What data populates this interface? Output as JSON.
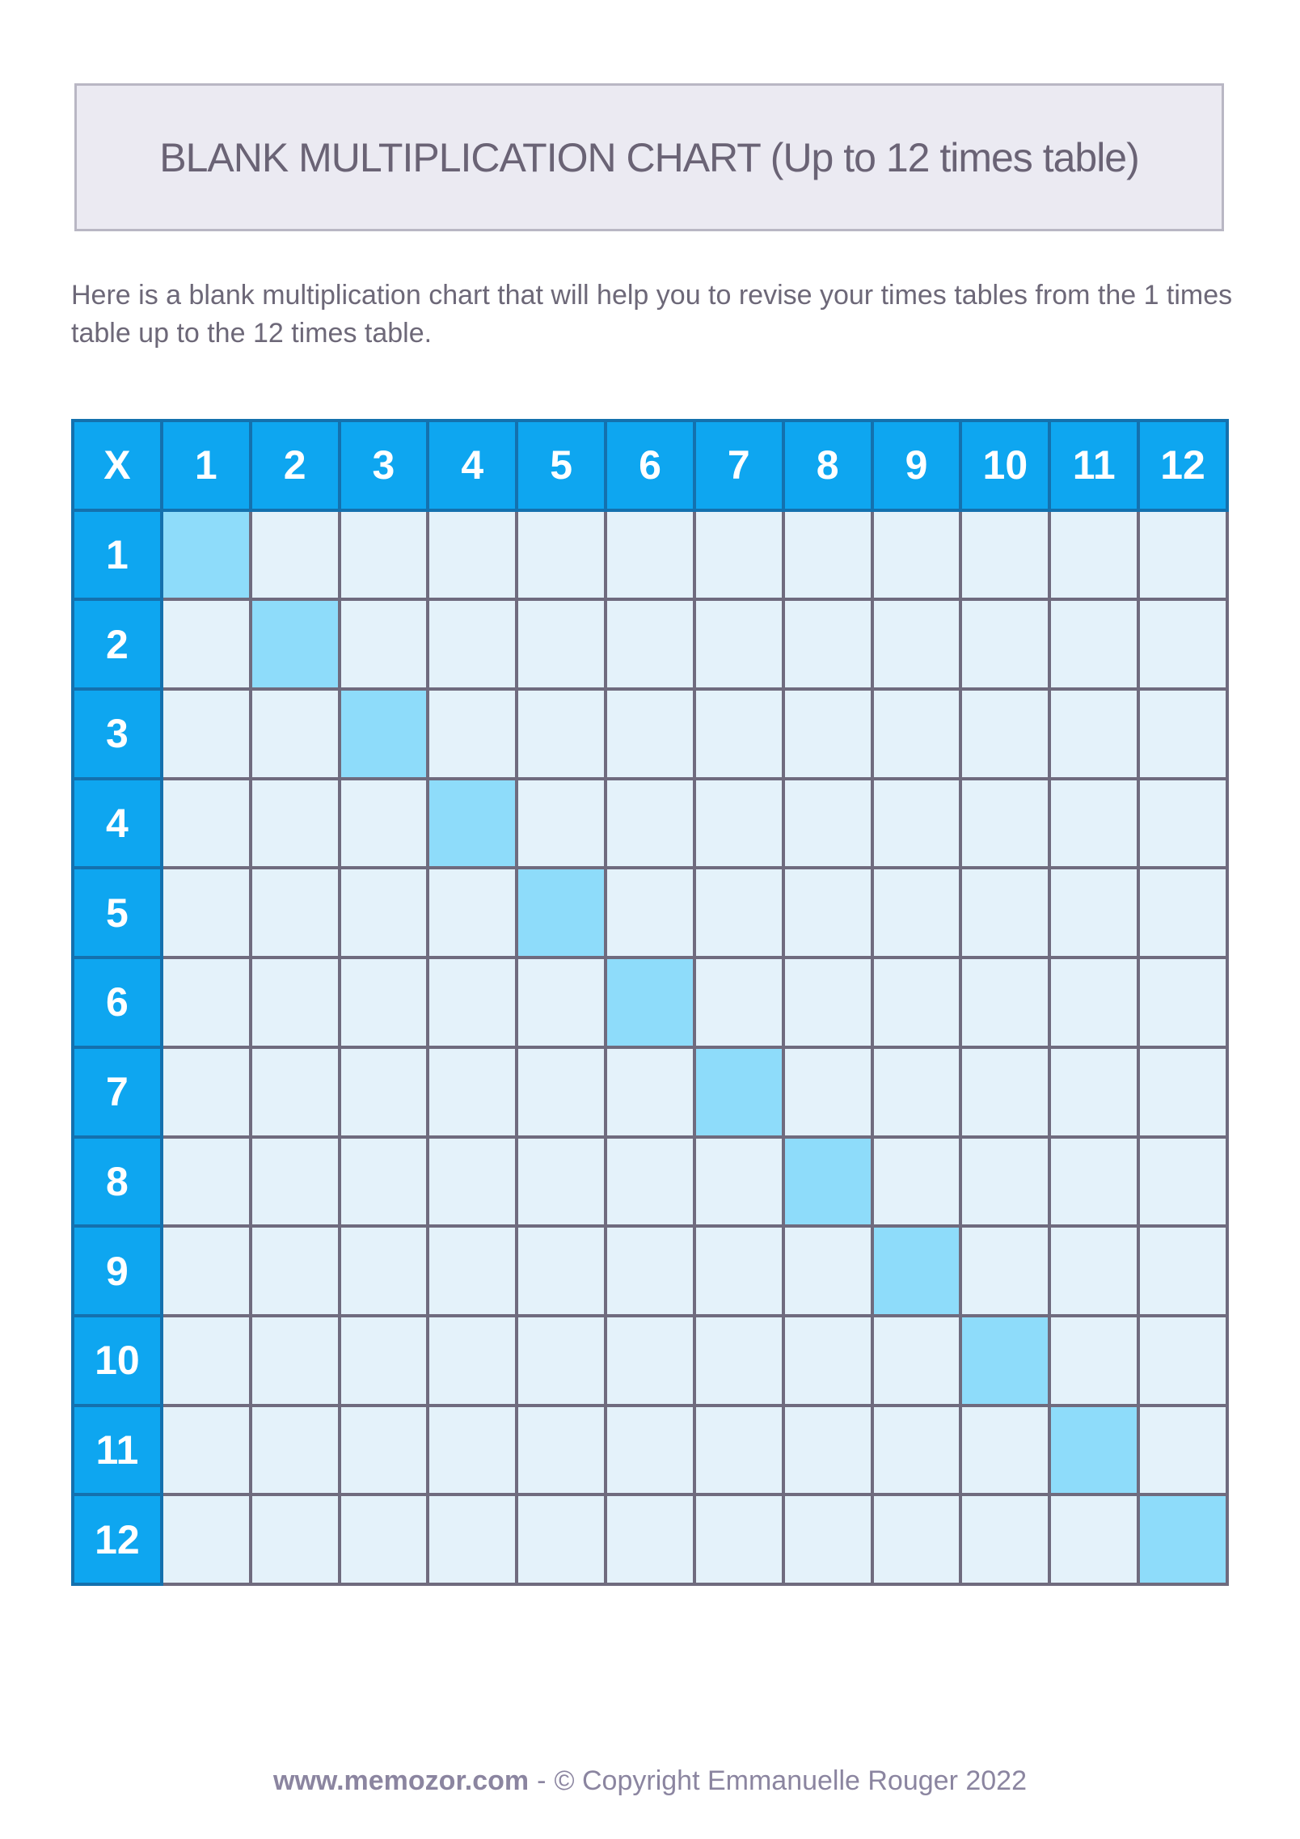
{
  "page": {
    "background": "#ffffff"
  },
  "title_box": {
    "text": "BLANK MULTIPLICATION CHART (Up to 12 times table)",
    "bg": "#ebeaf2",
    "border": "#b9b7c4",
    "text_color": "#6a6375"
  },
  "intro": {
    "text": "Here is a blank multiplication chart that will help you to revise your times tables from the 1 times table up to the 12 times table."
  },
  "table": {
    "corner_label": "X",
    "column_headers": [
      "1",
      "2",
      "3",
      "4",
      "5",
      "6",
      "7",
      "8",
      "9",
      "10",
      "11",
      "12"
    ],
    "row_headers": [
      "1",
      "2",
      "3",
      "4",
      "5",
      "6",
      "7",
      "8",
      "9",
      "10",
      "11",
      "12"
    ],
    "cells_blank": true,
    "highlight_pattern": "diagonal",
    "colors": {
      "header_bg": "#0ea6f0",
      "header_border": "#1471ae",
      "header_text": "#ffffff",
      "cell_bg": "#e4f2fa",
      "cell_border": "#6f6b7e",
      "diagonal_bg": "#8edcfa"
    }
  },
  "footer": {
    "site": "www.memozor.com",
    "separator": "-",
    "copyright": "© Copyright Emmanuelle Rouger 2022",
    "color": "#8b85a0"
  }
}
